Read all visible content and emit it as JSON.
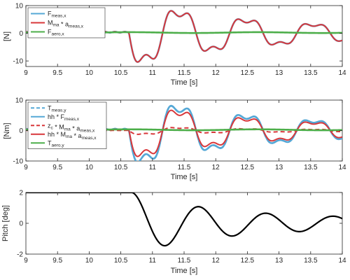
{
  "chart_data": [
    {
      "type": "line",
      "xlabel": "Time [s]",
      "ylabel": "[N]",
      "xlim": [
        9,
        14
      ],
      "ylim": [
        -12,
        10
      ],
      "xticks": [
        "9",
        "9.5",
        "10",
        "10.5",
        "11",
        "11.5",
        "12",
        "12.5",
        "13",
        "13.5",
        "14"
      ],
      "yticks": [
        "-10",
        "0",
        "10"
      ],
      "grid": false,
      "legend_position": "top-left",
      "series": [
        {
          "name_main": "F",
          "name_sub": "meas,x",
          "name_sup": "",
          "name_tail": "",
          "name_tail_sub": "",
          "color": "#55A8D6",
          "dash": "solid",
          "signal": "force",
          "scale": 1.0
        },
        {
          "name_main": "M",
          "name_sub": "ma",
          "name_sup": "",
          "name_tail": " * a",
          "name_tail_sub": "meas,x",
          "color": "#D8373A",
          "dash": "solid",
          "signal": "force",
          "scale": 1.0
        },
        {
          "name_main": "F",
          "name_sub": "aero,x",
          "name_sup": "",
          "name_tail": "",
          "name_tail_sub": "",
          "color": "#4DAE4A",
          "dash": "solid",
          "signal": "aero",
          "scale": 1.0
        }
      ]
    },
    {
      "type": "line",
      "xlabel": "Time [s]",
      "ylabel": "[Nm]",
      "xlim": [
        9,
        14
      ],
      "ylim": [
        -10,
        10
      ],
      "xticks": [
        "9",
        "9.5",
        "10",
        "10.5",
        "11",
        "11.5",
        "12",
        "12.5",
        "13",
        "13.5",
        "14"
      ],
      "yticks": [
        "-10",
        "0",
        "10"
      ],
      "grid": false,
      "legend_position": "top-left",
      "series": [
        {
          "name_main": "T",
          "name_sub": "meas,y",
          "name_sup": "",
          "name_tail": "",
          "name_tail_sub": "",
          "color": "#55A8D6",
          "dash": "dashed",
          "signal": "force",
          "scale": 1.0
        },
        {
          "name_main": "hh * F",
          "name_sub": "meas,x",
          "name_sup": "",
          "name_tail": "",
          "name_tail_sub": "",
          "color": "#55A8D6",
          "dash": "solid",
          "signal": "force",
          "scale": 1.0
        },
        {
          "name_main": "z",
          "name_sub": "c",
          "name_sup": "",
          "name_tail": " * M",
          "name_tail_sub": "ma",
          "name_tail2": " * a",
          "name_tail2_sub": "meas,x",
          "color": "#D8373A",
          "dash": "dashed",
          "signal": "force",
          "scale": 0.12
        },
        {
          "name_main": "hh * M",
          "name_sub": "ma",
          "name_sup": "",
          "name_tail": " * a",
          "name_tail_sub": "meas,x",
          "color": "#D8373A",
          "dash": "solid",
          "signal": "force",
          "scale": 0.82
        },
        {
          "name_main": "T",
          "name_sub": "aero,y",
          "name_sup": "",
          "name_tail": "",
          "name_tail_sub": "",
          "color": "#4DAE4A",
          "dash": "solid",
          "signal": "aero",
          "scale": 1.0
        }
      ]
    },
    {
      "type": "line",
      "xlabel": "Time [s]",
      "ylabel": "Pitch [deg]",
      "xlim": [
        9,
        14
      ],
      "ylim": [
        -2,
        2
      ],
      "xticks": [
        "9",
        "9.5",
        "10",
        "10.5",
        "11",
        "11.5",
        "12",
        "12.5",
        "13",
        "13.5",
        "14"
      ],
      "yticks": [
        "-2",
        "0",
        "2"
      ],
      "grid": false,
      "series": [
        {
          "color": "#000000",
          "dash": "solid",
          "signal": "pitch",
          "scale": 1.0
        }
      ]
    }
  ],
  "signal_model": {
    "release_time": 10.68,
    "pitch_initial": 2.0,
    "pitch_first_min": -1.45,
    "pitch_final_amp": 0.35,
    "pitch_period": 0.53,
    "pitch_tau": 1.35,
    "force_peak": 11.0,
    "force_tau": 1.9,
    "force_harmonic": 0.28
  }
}
